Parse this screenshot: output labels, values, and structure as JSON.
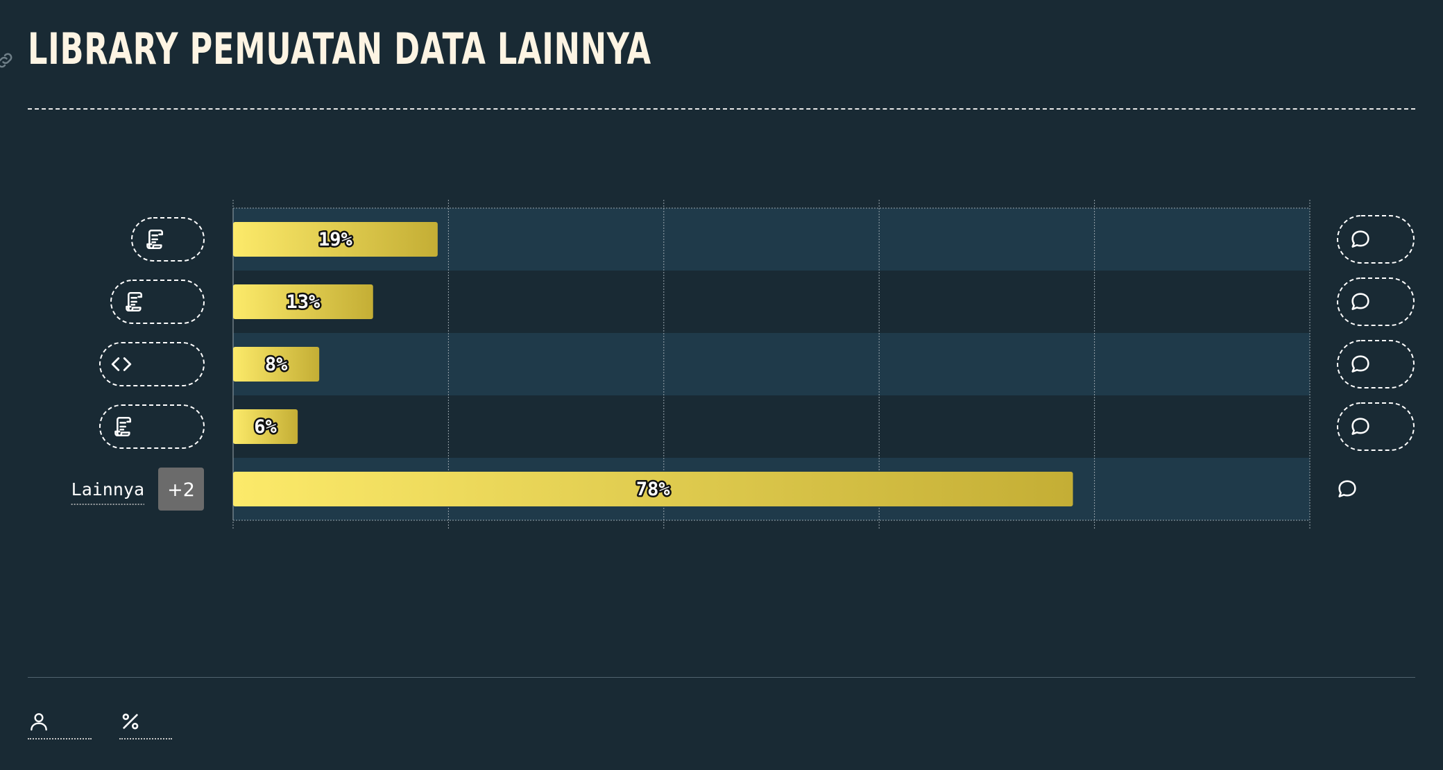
{
  "header": {
    "title": "LIBRARY PEMUATAN DATA LAINNYA",
    "link_icon": "link-icon"
  },
  "chart_data": {
    "type": "bar",
    "orientation": "horizontal",
    "categories": [
      "",
      "",
      "",
      "",
      "Lainnya"
    ],
    "category_icons": [
      "scroll-icon",
      "scroll-icon",
      "code-icon",
      "scroll-icon",
      ""
    ],
    "category_badges": [
      "",
      "",
      "",
      "",
      "+2"
    ],
    "values": [
      19,
      13,
      8,
      6,
      78
    ],
    "value_labels": [
      "19%",
      "13%",
      "8%",
      "6%",
      "78%"
    ],
    "row_end_icons": [
      "comment-icon",
      "comment-icon",
      "comment-icon",
      "comment-icon",
      "comment-icon"
    ],
    "xlim": [
      0,
      100
    ],
    "x_gridlines": [
      0,
      20,
      40,
      60,
      80,
      100
    ],
    "grid": true,
    "title": "",
    "xlabel": "",
    "ylabel": ""
  },
  "footer": {
    "items": [
      {
        "icon": "user-icon",
        "label": ""
      },
      {
        "icon": "percent-icon",
        "label": ""
      }
    ]
  },
  "colors": {
    "background": "#192a34",
    "row_band": "#1f3a4a",
    "bar_gradient_start": "#fcea6a",
    "bar_gradient_end": "#c4ae35",
    "title": "#fdf4e3",
    "badge": "#6b6b6b",
    "grid": "#9aa6ad"
  }
}
